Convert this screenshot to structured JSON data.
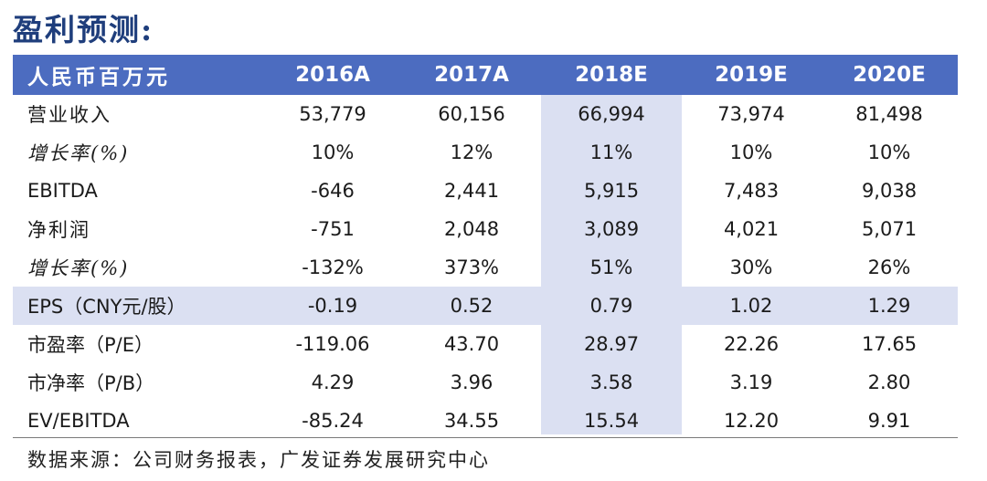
{
  "title": "盈利预测:",
  "header": {
    "label": "人民币百万元",
    "years": [
      "2016A",
      "2017A",
      "2018E",
      "2019E",
      "2020E"
    ]
  },
  "rows": [
    {
      "label": "营业收入",
      "values": [
        "53,779",
        "60,156",
        "66,994",
        "73,974",
        "81,498"
      ]
    },
    {
      "label": "增长率(%)",
      "values": [
        "10%",
        "12%",
        "11%",
        "10%",
        "10%"
      ]
    },
    {
      "label": "EBITDA",
      "values": [
        "-646",
        "2,441",
        "5,915",
        "7,483",
        "9,038"
      ]
    },
    {
      "label": "净利润",
      "values": [
        "-751",
        "2,048",
        "3,089",
        "4,021",
        "5,071"
      ]
    },
    {
      "label": "增长率(%)",
      "values": [
        "-132%",
        "373%",
        "51%",
        "30%",
        "26%"
      ]
    },
    {
      "label": "EPS（CNY元/股）",
      "values": [
        "-0.19",
        "0.52",
        "0.79",
        "1.02",
        "1.29"
      ]
    },
    {
      "label": "市盈率（P/E）",
      "values": [
        "-119.06",
        "43.70",
        "28.97",
        "22.26",
        "17.65"
      ]
    },
    {
      "label": "市净率（P/B）",
      "values": [
        "4.29",
        "3.96",
        "3.58",
        "3.19",
        "2.80"
      ]
    },
    {
      "label": "EV/EBITDA",
      "values": [
        "-85.24",
        "34.55",
        "15.54",
        "12.20",
        "9.91"
      ]
    }
  ],
  "source": "数据来源：公司财务报表，广发证券发展研究中心",
  "colors": {
    "title": "#1f3e7c",
    "header_bg": "#4c6cc0",
    "highlight": "#dbe0f2"
  }
}
